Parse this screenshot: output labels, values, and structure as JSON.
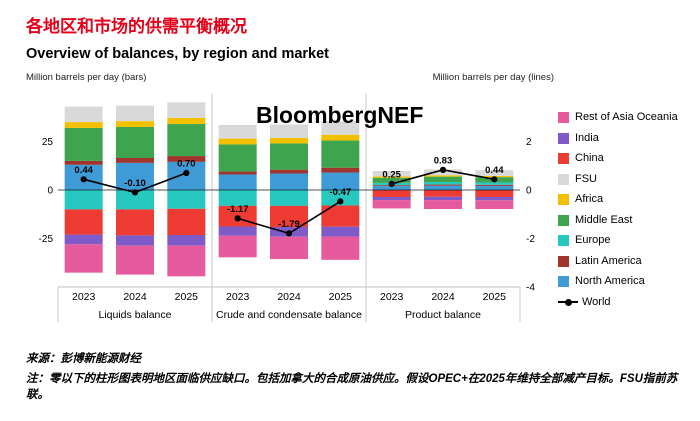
{
  "colors": {
    "title_red": "#e50019",
    "separator": "#c9c9c9",
    "zero_line": "#1a1a1a"
  },
  "header": {
    "title_zh": "各地区和市场的供需平衡概况",
    "subtitle_en": "Overview of balances, by region and market"
  },
  "watermark": "BloombergNEF",
  "axes": {
    "left_label": "Million barrels per day (bars)",
    "right_label": "Million barrels per day (lines)"
  },
  "legend": [
    {
      "label": "Rest of Asia Oceania",
      "color": "#e55b9e"
    },
    {
      "label": "India",
      "color": "#7e5bc8"
    },
    {
      "label": "China",
      "color": "#ee3b33"
    },
    {
      "label": "FSU",
      "color": "#d9d9d9"
    },
    {
      "label": "Africa",
      "color": "#f3c000"
    },
    {
      "label": "Middle East",
      "color": "#3ea44e"
    },
    {
      "label": "Europe",
      "color": "#27c8c0"
    },
    {
      "label": "Latin America",
      "color": "#a0352e"
    },
    {
      "label": "North America",
      "color": "#3e9bd5"
    },
    {
      "label": "World",
      "color": "#000000",
      "type": "line"
    }
  ],
  "chart_data": {
    "type": "bar",
    "subtype": "stacked-bar-with-line",
    "title": "Overview of balances, by region and market",
    "groups": [
      {
        "label": "Liquids balance"
      },
      {
        "label": "Crude and condensate balance"
      },
      {
        "label": "Product balance"
      }
    ],
    "categories": [
      "2023",
      "2024",
      "2025",
      "2023",
      "2024",
      "2025",
      "2023",
      "2024",
      "2025"
    ],
    "left_axis": {
      "label": "Million barrels per day (bars)",
      "ticks": [
        25,
        0,
        -25
      ],
      "range": [
        -50,
        50
      ]
    },
    "right_axis": {
      "label": "Million barrels per day (lines)",
      "ticks": [
        2,
        0,
        -2,
        -4
      ],
      "range": [
        -4,
        4
      ]
    },
    "series": [
      {
        "name": "North America",
        "color": "#3e9bd5",
        "values": [
          13,
          14,
          14.5,
          8,
          8.5,
          9,
          2.0,
          2.2,
          2.1
        ]
      },
      {
        "name": "Latin America",
        "color": "#a0352e",
        "values": [
          2,
          2.5,
          3,
          1.5,
          2,
          2.5,
          0.5,
          0.6,
          0.6
        ]
      },
      {
        "name": "Europe",
        "color": "#27c8c0",
        "values": [
          -10,
          -10,
          -9.7,
          -8.2,
          -8.2,
          -8.0,
          1.2,
          1.3,
          1.2
        ]
      },
      {
        "name": "China",
        "color": "#ee3b33",
        "values": [
          -13,
          -13.4,
          -13.5,
          -10.6,
          -10.9,
          -10.9,
          -3.6,
          -3.5,
          -3.6
        ]
      },
      {
        "name": "India",
        "color": "#7e5bc8",
        "values": [
          -5,
          -5.3,
          -5.5,
          -4.8,
          -5.0,
          -5.1,
          -1.6,
          -1.7,
          -1.7
        ]
      },
      {
        "name": "Rest of Asia Oceania",
        "color": "#e55b9e",
        "values": [
          -14.6,
          -14.9,
          -15.8,
          -11.1,
          -11.5,
          -12.0,
          -4.3,
          -4.6,
          -4.5
        ]
      },
      {
        "name": "Middle East",
        "color": "#3ea44e",
        "values": [
          17,
          16,
          16.5,
          14,
          13.5,
          14,
          2.6,
          2.8,
          2.7
        ]
      },
      {
        "name": "Africa",
        "color": "#f3c000",
        "values": [
          3,
          3,
          3.2,
          3,
          2.8,
          3,
          0.7,
          0.7,
          0.7
        ]
      },
      {
        "name": "FSU",
        "color": "#d9d9d9",
        "values": [
          8,
          8,
          8,
          7,
          7,
          7,
          2.8,
          3.0,
          2.9
        ]
      }
    ],
    "line_series": {
      "name": "World",
      "color": "#000000",
      "axis": "right",
      "values": [
        0.44,
        -0.1,
        0.7,
        -1.17,
        -1.79,
        -0.47,
        0.25,
        0.83,
        0.44
      ],
      "labels": [
        "0.44",
        "-0.10",
        "0.70",
        "-1.17",
        "-1.79",
        "-0.47",
        "0.25",
        "0.83",
        "0.44"
      ]
    }
  },
  "footer": {
    "source": "来源：彭博新能源财经",
    "note": "注：零以下的柱形图表明地区面临供应缺口。包括加拿大的合成原油供应。假设OPEC+在2025年维持全部减产目标。FSU指前苏联。"
  }
}
